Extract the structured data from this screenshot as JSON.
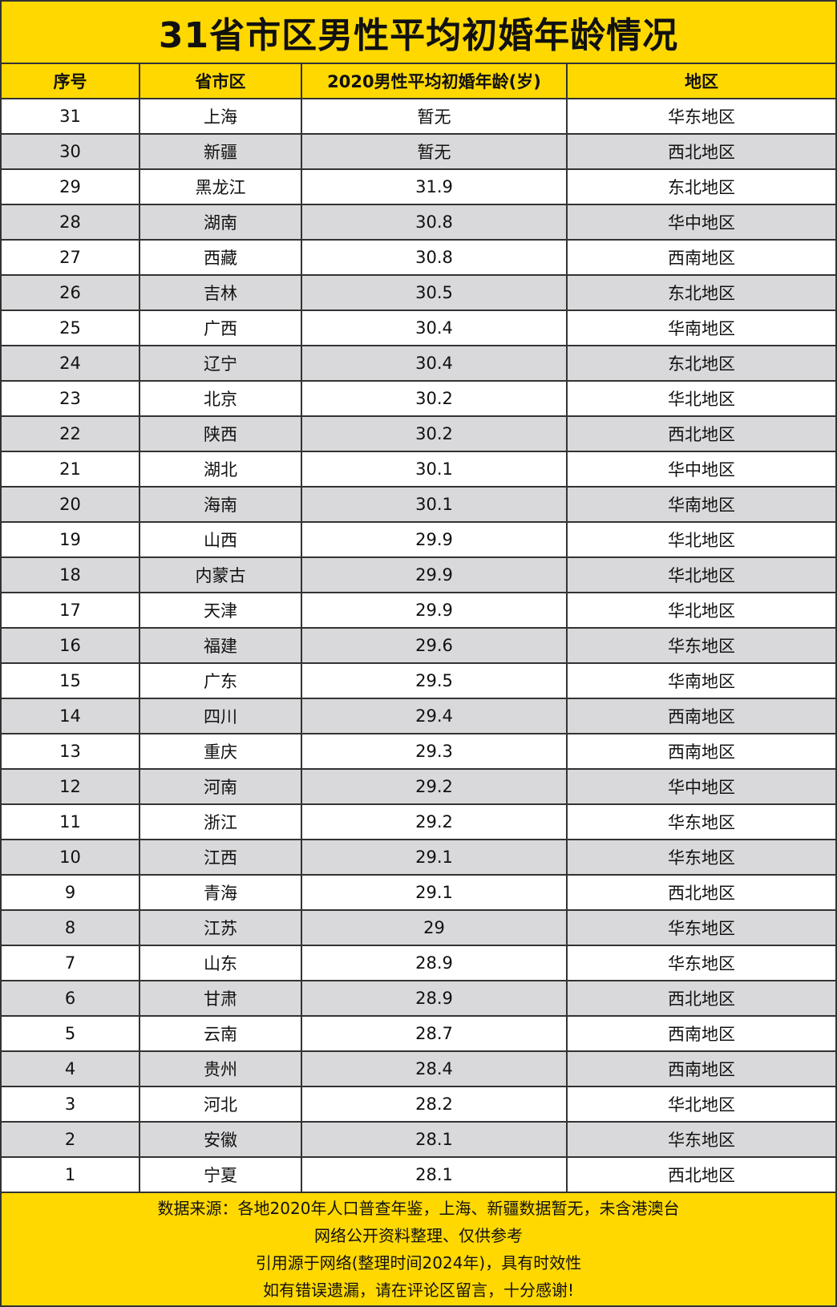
{
  "title": "31省市区男性平均初婚年龄情况",
  "colors": {
    "accent": "#FFD800",
    "alt_row": "#d9d9db",
    "border": "#333333"
  },
  "chart_data": {
    "type": "table",
    "title": "31省市区男性平均初婚年龄情况",
    "columns": [
      "序号",
      "省市区",
      "2020男性平均初婚年龄(岁)",
      "地区"
    ],
    "rows": [
      [
        "31",
        "上海",
        "暂无",
        "华东地区"
      ],
      [
        "30",
        "新疆",
        "暂无",
        "西北地区"
      ],
      [
        "29",
        "黑龙江",
        "31.9",
        "东北地区"
      ],
      [
        "28",
        "湖南",
        "30.8",
        "华中地区"
      ],
      [
        "27",
        "西藏",
        "30.8",
        "西南地区"
      ],
      [
        "26",
        "吉林",
        "30.5",
        "东北地区"
      ],
      [
        "25",
        "广西",
        "30.4",
        "华南地区"
      ],
      [
        "24",
        "辽宁",
        "30.4",
        "东北地区"
      ],
      [
        "23",
        "北京",
        "30.2",
        "华北地区"
      ],
      [
        "22",
        "陕西",
        "30.2",
        "西北地区"
      ],
      [
        "21",
        "湖北",
        "30.1",
        "华中地区"
      ],
      [
        "20",
        "海南",
        "30.1",
        "华南地区"
      ],
      [
        "19",
        "山西",
        "29.9",
        "华北地区"
      ],
      [
        "18",
        "内蒙古",
        "29.9",
        "华北地区"
      ],
      [
        "17",
        "天津",
        "29.9",
        "华北地区"
      ],
      [
        "16",
        "福建",
        "29.6",
        "华东地区"
      ],
      [
        "15",
        "广东",
        "29.5",
        "华南地区"
      ],
      [
        "14",
        "四川",
        "29.4",
        "西南地区"
      ],
      [
        "13",
        "重庆",
        "29.3",
        "西南地区"
      ],
      [
        "12",
        "河南",
        "29.2",
        "华中地区"
      ],
      [
        "11",
        "浙江",
        "29.2",
        "华东地区"
      ],
      [
        "10",
        "江西",
        "29.1",
        "华东地区"
      ],
      [
        "9",
        "青海",
        "29.1",
        "西北地区"
      ],
      [
        "8",
        "江苏",
        "29",
        "华东地区"
      ],
      [
        "7",
        "山东",
        "28.9",
        "华东地区"
      ],
      [
        "6",
        "甘肃",
        "28.9",
        "西北地区"
      ],
      [
        "5",
        "云南",
        "28.7",
        "西南地区"
      ],
      [
        "4",
        "贵州",
        "28.4",
        "西南地区"
      ],
      [
        "3",
        "河北",
        "28.2",
        "华北地区"
      ],
      [
        "2",
        "安徽",
        "28.1",
        "华东地区"
      ],
      [
        "1",
        "宁夏",
        "28.1",
        "西北地区"
      ]
    ]
  },
  "footer": [
    "数据来源：各地2020年人口普查年鉴，上海、新疆数据暂无，未含港澳台",
    "网络公开资料整理、仅供参考",
    "引用源于网络(整理时间2024年)，具有时效性",
    "如有错误遗漏，请在评论区留言，十分感谢!"
  ]
}
